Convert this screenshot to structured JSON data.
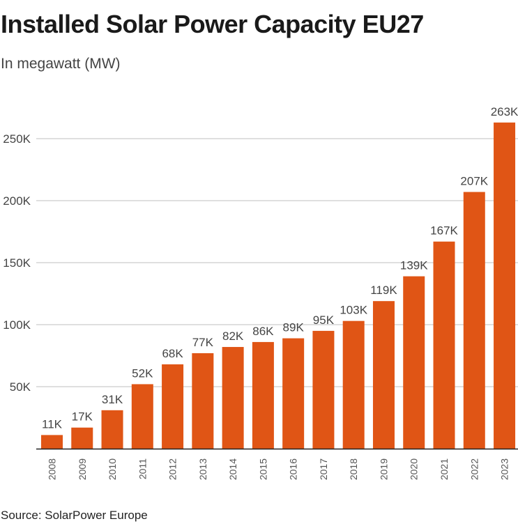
{
  "chart_data": {
    "type": "bar",
    "title": "Installed Solar Power Capacity EU27",
    "subtitle": "In megawatt (MW)",
    "source": "Source: SolarPower Europe",
    "xlabel": "",
    "ylabel": "",
    "ylim": [
      0,
      270000
    ],
    "grid": true,
    "y_ticks": [
      50000,
      100000,
      150000,
      200000,
      250000
    ],
    "y_tick_labels": [
      "50K",
      "100K",
      "150K",
      "200K",
      "250K"
    ],
    "categories": [
      "2008",
      "2009",
      "2010",
      "2011",
      "2012",
      "2013",
      "2014",
      "2015",
      "2016",
      "2017",
      "2018",
      "2019",
      "2020",
      "2021",
      "2022",
      "2023"
    ],
    "values": [
      11000,
      17000,
      31000,
      52000,
      68000,
      77000,
      82000,
      86000,
      89000,
      95000,
      103000,
      119000,
      139000,
      167000,
      207000,
      263000
    ],
    "data_labels": [
      "11K",
      "17K",
      "31K",
      "52K",
      "68K",
      "77K",
      "82K",
      "86K",
      "89K",
      "95K",
      "103K",
      "119K",
      "139K",
      "167K",
      "207K",
      "263K"
    ],
    "bar_color": "#e05515",
    "grid_color": "#cccccc",
    "axis_color": "#222222"
  }
}
